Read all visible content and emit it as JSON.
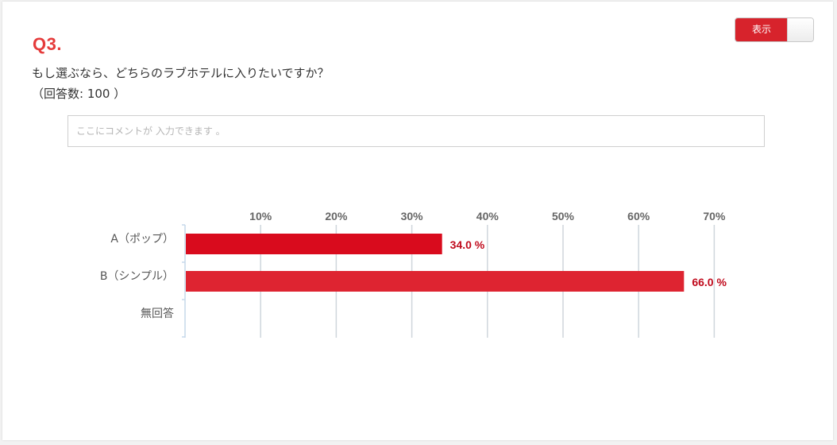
{
  "question": {
    "number": "Q3.",
    "text": "もし選ぶなら、どちらのラブホテルに入りたいですか？",
    "responses": "（回答数: 100 ）"
  },
  "toggle": {
    "label": "表示",
    "state": "on"
  },
  "comment": {
    "placeholder": "ここにコメントが 入力できます 。",
    "value": ""
  },
  "colors": {
    "accent": "#e53b3b",
    "bar_a": "#d90b1d",
    "bar_b": "#de2431",
    "value_label": "#c00a1c"
  },
  "chart_data": {
    "type": "bar",
    "orientation": "horizontal",
    "categories": [
      "A（ポップ）",
      "B（シンプル）",
      "無回答"
    ],
    "values": [
      34.0,
      66.0,
      0
    ],
    "value_labels": [
      "34.0 %",
      "66.0 %",
      ""
    ],
    "ticks": [
      "10%",
      "20%",
      "30%",
      "40%",
      "50%",
      "60%",
      "70%"
    ],
    "tick_values": [
      10,
      20,
      30,
      40,
      50,
      60,
      70
    ],
    "xlim": [
      0,
      70
    ],
    "grid": true,
    "axis_position": "top"
  }
}
